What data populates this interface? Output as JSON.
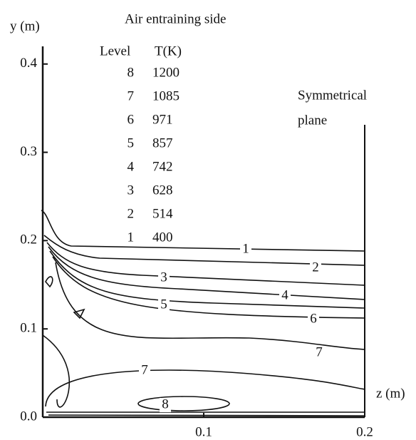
{
  "chart_data": {
    "type": "contour",
    "title": "Air entraining side",
    "ylabel": "y (m)",
    "xlabel": "z (m)",
    "annotation": [
      "Symmetrical",
      "plane"
    ],
    "level_header": [
      "Level",
      "T(K)"
    ],
    "levels": [
      8,
      7,
      6,
      5,
      4,
      3,
      2,
      1
    ],
    "temperatures": [
      1200,
      1085,
      971,
      857,
      742,
      628,
      514,
      400
    ],
    "xlim": [
      0,
      0.2
    ],
    "xticks": [
      0.1,
      0.2
    ],
    "ylim": [
      0,
      0.42
    ],
    "yticks": [
      {
        "value": 0,
        "label": "0.0"
      },
      0.1,
      0.2,
      0.3,
      0.4
    ],
    "color": "#111111"
  }
}
